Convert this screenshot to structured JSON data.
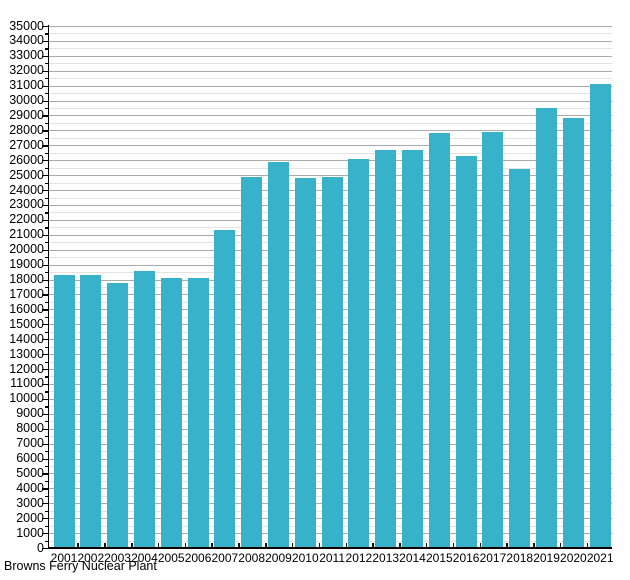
{
  "chart_data": {
    "type": "bar",
    "title": "",
    "footer": "Browns Ferry Nuclear Plant",
    "categories": [
      "2001",
      "2002",
      "2003",
      "2004",
      "2005",
      "2006",
      "2007",
      "2008",
      "2009",
      "2010",
      "2011",
      "2012",
      "2013",
      "2014",
      "2015",
      "2016",
      "2017",
      "2018",
      "2019",
      "2020",
      "2021"
    ],
    "values": [
      18300,
      18300,
      17800,
      18600,
      18100,
      18100,
      21300,
      24900,
      25900,
      24800,
      24900,
      26100,
      26700,
      26700,
      27800,
      26300,
      27900,
      25400,
      29500,
      28800,
      31100
    ],
    "xlabel": "",
    "ylabel": "",
    "ylim": [
      0,
      35000
    ],
    "y_major_step": 1000,
    "y_minor_step": 500,
    "y_tick_labels": [
      "0",
      "1000",
      "2000",
      "3000",
      "4000",
      "5000",
      "6000",
      "7000",
      "8000",
      "9000",
      "10000",
      "11000",
      "12000",
      "13000",
      "14000",
      "15000",
      "16000",
      "17000",
      "18000",
      "19000",
      "20000",
      "21000",
      "22000",
      "23000",
      "24000",
      "25000",
      "26000",
      "27000",
      "28000",
      "29000",
      "30000",
      "31000",
      "32000",
      "33000",
      "34000",
      "35000"
    ],
    "grid": "on",
    "legend_position": "none",
    "colors": {
      "bar_fill": "#38B2CA",
      "grid_major": "#ABABAB",
      "grid_minor": "#E3E3E3",
      "axis": "#000000",
      "text": "#000000",
      "background": "#FFFFFF"
    }
  }
}
